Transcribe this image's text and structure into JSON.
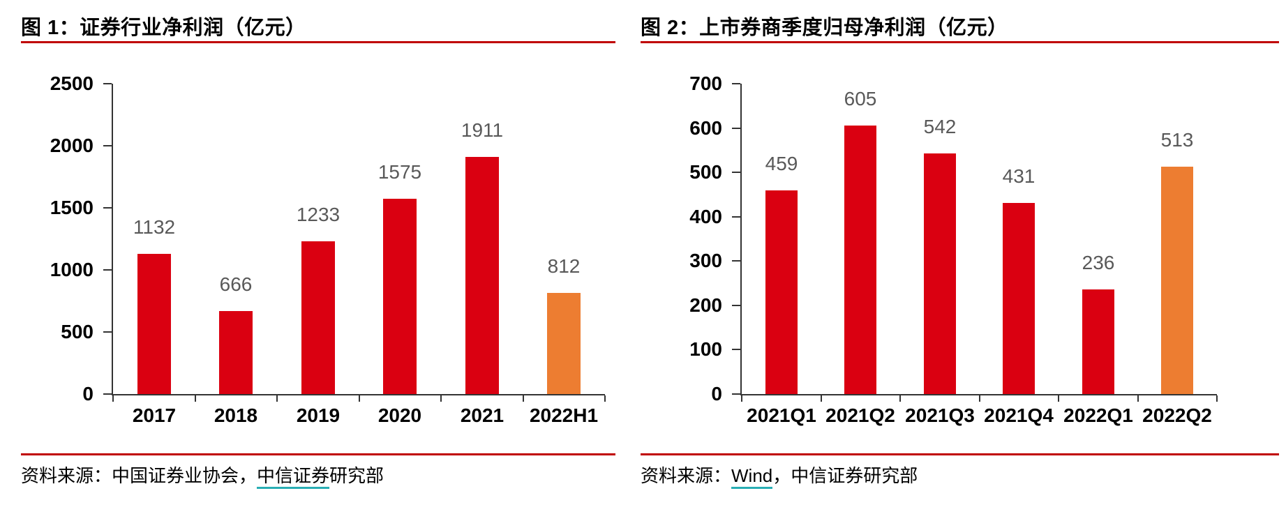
{
  "colors": {
    "bar_red": "#DA0011",
    "bar_orange": "#ED7D31",
    "rule_red": "#C00000",
    "label_gray": "#595959",
    "axis_color": "#333333",
    "link_teal": "#29AEB4",
    "background": "#FFFFFF"
  },
  "figures": [
    {
      "title": "图 1：证券行业净利润（亿元）",
      "source_segments": [
        {
          "text": "资料来源：中国证券业协会，",
          "link": false
        },
        {
          "text": "中信证券",
          "link": true
        },
        {
          "text": "研究部",
          "link": false
        }
      ]
    },
    {
      "title": "图 2：上市券商季度归母净利润（亿元）",
      "source_segments": [
        {
          "text": "资料来源：",
          "link": false
        },
        {
          "text": "Wind",
          "link": true
        },
        {
          "text": "，中信证券研究部",
          "link": false
        }
      ]
    }
  ],
  "chart_data": [
    {
      "type": "bar",
      "title": "图 1：证券行业净利润（亿元）",
      "categories": [
        "2017",
        "2018",
        "2019",
        "2020",
        "2021",
        "2022H1"
      ],
      "values": [
        1132,
        666,
        1233,
        1575,
        1911,
        812
      ],
      "bar_colors": [
        "red",
        "red",
        "red",
        "red",
        "red",
        "orange"
      ],
      "data_labels": [
        1132,
        666,
        1233,
        1575,
        1911,
        812
      ],
      "ylim": [
        0,
        2500
      ],
      "yticks": [
        0,
        500,
        1000,
        1500,
        2000,
        2500
      ],
      "xlabel": "",
      "ylabel": "",
      "grid": false,
      "legend": "none"
    },
    {
      "type": "bar",
      "title": "图 2：上市券商季度归母净利润（亿元）",
      "categories": [
        "2021Q1",
        "2021Q2",
        "2021Q3",
        "2021Q4",
        "2022Q1",
        "2022Q2"
      ],
      "values": [
        459,
        605,
        542,
        431,
        236,
        513
      ],
      "bar_colors": [
        "red",
        "red",
        "red",
        "red",
        "red",
        "orange"
      ],
      "data_labels": [
        459,
        605,
        542,
        431,
        236,
        513
      ],
      "ylim": [
        0,
        700
      ],
      "yticks": [
        0,
        100,
        200,
        300,
        400,
        500,
        600,
        700
      ],
      "xlabel": "",
      "ylabel": "",
      "grid": false,
      "legend": "none"
    }
  ]
}
